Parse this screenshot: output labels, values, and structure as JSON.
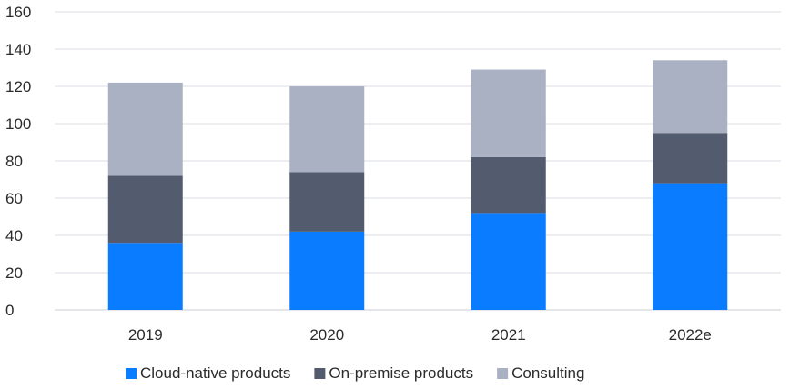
{
  "chart_data": {
    "type": "bar",
    "stacked": true,
    "categories": [
      "2019",
      "2020",
      "2021",
      "2022e"
    ],
    "series": [
      {
        "name": "Cloud-native products",
        "color": "#0a7cff",
        "values": [
          36,
          42,
          52,
          68
        ]
      },
      {
        "name": "On-premise products",
        "color": "#525c6e",
        "values": [
          36,
          32,
          30,
          27
        ]
      },
      {
        "name": "Consulting",
        "color": "#aab1c2",
        "values": [
          50,
          46,
          47,
          39
        ]
      }
    ],
    "ylim": [
      0,
      160
    ],
    "yticks": [
      "0",
      "20",
      "40",
      "60",
      "80",
      "100",
      "120",
      "140",
      "160"
    ],
    "ytick_values": [
      0,
      20,
      40,
      60,
      80,
      100,
      120,
      140,
      160
    ],
    "grid": true,
    "legend_position": "bottom",
    "title": "",
    "xlabel": "",
    "ylabel": ""
  }
}
